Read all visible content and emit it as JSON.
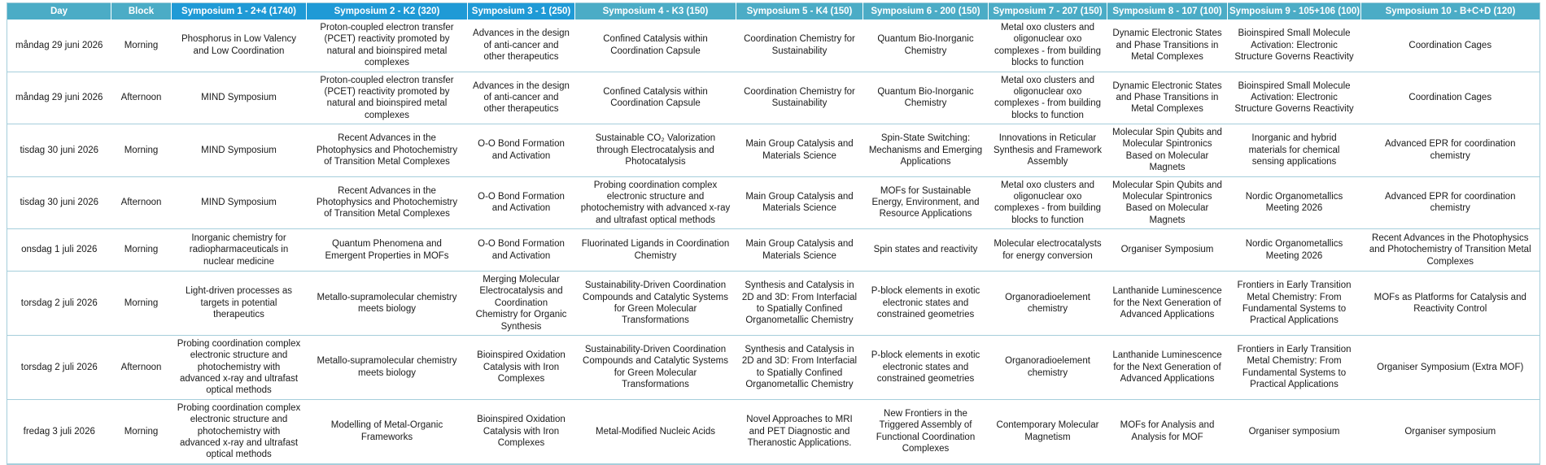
{
  "colors": {
    "header_teal": "#4BACC6",
    "header_blue": "#1F9AD6",
    "row_border": "#A5CEDB",
    "text": "#1A1A1A"
  },
  "table": {
    "columns": [
      {
        "key": "day",
        "label": "Day",
        "theme": "teal"
      },
      {
        "key": "block",
        "label": "Block",
        "theme": "teal"
      },
      {
        "key": "s1",
        "label": "Symposium 1 - 2+4 (1740)",
        "theme": "blue"
      },
      {
        "key": "s2",
        "label": "Symposium 2 - K2 (320)",
        "theme": "blue"
      },
      {
        "key": "s3",
        "label": "Symposium 3 - 1 (250)",
        "theme": "blue"
      },
      {
        "key": "s4",
        "label": "Symposium 4 - K3 (150)",
        "theme": "teal"
      },
      {
        "key": "s5",
        "label": "Symposium 5 - K4 (150)",
        "theme": "teal"
      },
      {
        "key": "s6",
        "label": "Symposium 6 - 200 (150)",
        "theme": "teal"
      },
      {
        "key": "s7",
        "label": "Symposium 7 - 207 (150)",
        "theme": "teal"
      },
      {
        "key": "s8",
        "label": "Symposium 8 - 107 (100)",
        "theme": "teal"
      },
      {
        "key": "s9",
        "label": "Symposium 9 - 105+106 (100)",
        "theme": "teal"
      },
      {
        "key": "s10",
        "label": "Symposium 10 - B+C+D (120)",
        "theme": "teal"
      }
    ],
    "rows": [
      {
        "day": "måndag 29 juni 2026",
        "block": "Morning",
        "cells": [
          "Phosphorus in Low Valency and Low Coordination",
          "Proton-coupled electron transfer (PCET) reactivity promoted by natural and bioinspired metal complexes",
          "Advances in the design of anti-cancer and other therapeutics",
          "Confined Catalysis within Coordination Capsule",
          "Coordination Chemistry for Sustainability",
          "Quantum Bio-Inorganic Chemistry",
          "Metal oxo clusters and oligonuclear oxo complexes - from building blocks to function",
          "Dynamic Electronic States and Phase Transitions in Metal Complexes",
          "Bioinspired Small Molecule Activation: Electronic Structure Governs Reactivity",
          "Coordination Cages"
        ]
      },
      {
        "day": "måndag 29 juni 2026",
        "block": "Afternoon",
        "cells": [
          "MIND Symposium",
          "Proton-coupled electron transfer (PCET) reactivity promoted by natural and bioinspired metal complexes",
          "Advances in the design of anti-cancer and other therapeutics",
          "Confined Catalysis within Coordination Capsule",
          "Coordination Chemistry for Sustainability",
          "Quantum Bio-Inorganic Chemistry",
          "Metal oxo clusters and oligonuclear oxo complexes - from building blocks to function",
          "Dynamic Electronic States and Phase Transitions in Metal Complexes",
          "Bioinspired Small Molecule Activation: Electronic Structure Governs Reactivity",
          "Coordination Cages"
        ]
      },
      {
        "day": "tisdag 30 juni 2026",
        "block": "Morning",
        "cells": [
          "MIND Symposium",
          "Recent Advances in the Photophysics and Photochemistry of Transition Metal Complexes",
          "O-O Bond Formation and Activation",
          "Sustainable CO₂ Valorization through Electrocatalysis and Photocatalysis",
          "Main Group Catalysis and Materials Science",
          "Spin-State Switching: Mechanisms and Emerging Applications",
          "Innovations in Reticular Synthesis and Framework Assembly",
          "Molecular Spin Qubits and Molecular Spintronics Based on Molecular Magnets",
          "Inorganic and hybrid materials for chemical sensing applications",
          "Advanced EPR for coordination chemistry"
        ]
      },
      {
        "day": "tisdag 30 juni 2026",
        "block": "Afternoon",
        "cells": [
          "MIND Symposium",
          "Recent Advances in the Photophysics and Photochemistry of Transition Metal Complexes",
          "O-O Bond Formation and Activation",
          "Probing coordination complex electronic structure and photochemistry with advanced x-ray and ultrafast optical methods",
          "Main Group Catalysis and Materials Science",
          "MOFs for Sustainable Energy, Environment, and Resource Applications",
          "Metal oxo clusters and oligonuclear oxo complexes - from building blocks to function",
          "Molecular Spin Qubits and Molecular Spintronics Based on Molecular Magnets",
          "Nordic Organometallics Meeting 2026",
          "Advanced EPR for coordination chemistry"
        ]
      },
      {
        "day": "onsdag 1 juli 2026",
        "block": "Morning",
        "cells": [
          "Inorganic chemistry for radiopharmaceuticals in nuclear medicine",
          "Quantum Phenomena and Emergent Properties in MOFs",
          "O-O Bond Formation and Activation",
          "Fluorinated Ligands in Coordination Chemistry",
          "Main Group Catalysis and Materials Science",
          "Spin states and reactivity",
          "Molecular electrocatalysts for energy conversion",
          "Organiser Symposium",
          "Nordic Organometallics Meeting 2026",
          "Recent Advances in the Photophysics and Photochemistry of Transition Metal Complexes"
        ]
      },
      {
        "day": "torsdag 2 juli 2026",
        "block": "Morning",
        "cells": [
          "Light-driven processes as targets in potential therapeutics",
          "Metallo-supramolecular chemistry meets biology",
          "Merging Molecular Electrocatalysis and Coordination Chemistry for Organic Synthesis",
          "Sustainability-Driven Coordination Compounds and Catalytic Systems for Green Molecular Transformations",
          "Synthesis and Catalysis in 2D and 3D: From Interfacial to Spatially Confined Organometallic Chemistry",
          "P-block elements in exotic electronic states and constrained geometries",
          "Organoradioelement chemistry",
          "Lanthanide Luminescence for the Next Generation of Advanced Applications",
          "Frontiers in Early Transition Metal Chemistry: From Fundamental Systems to Practical Applications",
          "MOFs as Platforms for Catalysis and Reactivity Control"
        ]
      },
      {
        "day": "torsdag 2 juli 2026",
        "block": "Afternoon",
        "cells": [
          "Probing coordination complex electronic structure and photochemistry with advanced x-ray and ultrafast optical methods",
          "Metallo-supramolecular chemistry meets biology",
          "Bioinspired Oxidation Catalysis with Iron Complexes",
          "Sustainability-Driven Coordination Compounds and Catalytic Systems for Green Molecular Transformations",
          "Synthesis and Catalysis in 2D and 3D: From Interfacial to Spatially Confined Organometallic Chemistry",
          "P-block elements in exotic electronic states and constrained geometries",
          "Organoradioelement chemistry",
          "Lanthanide Luminescence for the Next Generation of Advanced Applications",
          "Frontiers in Early Transition Metal Chemistry: From Fundamental Systems to Practical Applications",
          "Organiser Symposium (Extra MOF)"
        ]
      },
      {
        "day": "fredag 3 juli 2026",
        "block": "Morning",
        "cells": [
          "Probing coordination complex electronic structure and photochemistry with advanced x-ray and ultrafast optical methods",
          "Modelling of Metal-Organic Frameworks",
          "Bioinspired Oxidation Catalysis with Iron Complexes",
          "Metal-Modified Nucleic Acids",
          "Novel Approaches to MRI and PET Diagnostic and Theranostic Applications.",
          "New Frontiers in the Triggered Assembly of Functional Coordination Complexes",
          "Contemporary Molecular Magnetism",
          "MOFs for Analysis and Analysis for MOF",
          "Organiser symposium",
          "Organiser symposium"
        ]
      }
    ]
  }
}
